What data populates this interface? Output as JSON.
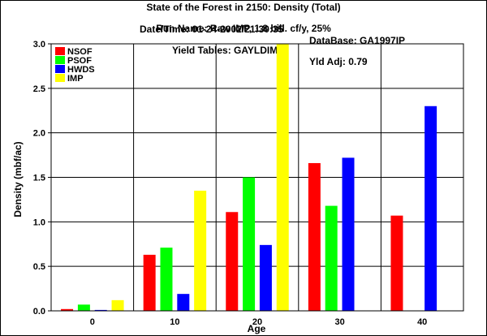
{
  "header": {
    "line1": "State of the Forest in 2150: Density (Total)",
    "date_label": "Date/Time: 01-24-2002/21:30:35",
    "db_label": "DataBase: GA1997IP",
    "line3": "Run Name: Raw IMP, 1.8 bill. cf/y, 25%",
    "yield_label": "Yield Tables: GAYLDIMP",
    "yldadj_label": "Yld Adj: 0.79"
  },
  "chart_data": {
    "type": "bar",
    "xlabel": "Age",
    "ylabel": "Density (mbf/ac)",
    "ylim": [
      0,
      3.0
    ],
    "y_ticks": [
      "0.0",
      "0.5",
      "1.0",
      "1.5",
      "2.0",
      "2.5",
      "3.0"
    ],
    "grid": true,
    "legend_position": "top-left",
    "categories": [
      "0",
      "10",
      "20",
      "30",
      "40"
    ],
    "series": [
      {
        "name": "NSOF",
        "color": "#ff0000",
        "values": [
          0.02,
          0.63,
          1.11,
          1.66,
          1.07
        ]
      },
      {
        "name": "PSOF",
        "color": "#00ff00",
        "values": [
          0.07,
          0.71,
          1.5,
          1.18,
          0
        ]
      },
      {
        "name": "HWDS",
        "color": "#0000ff",
        "values": [
          0.01,
          0.19,
          0.74,
          1.72,
          2.3
        ]
      },
      {
        "name": "IMP",
        "color": "#ffff00",
        "values": [
          0.12,
          1.35,
          3.0,
          0,
          0
        ]
      }
    ]
  }
}
